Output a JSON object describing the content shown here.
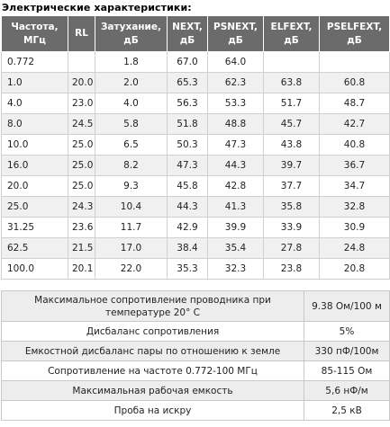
{
  "section_title": "Электрические характеристики:",
  "spec_table": {
    "headers": [
      "Частота, МГц",
      "RL",
      "Затухание, дБ",
      "NEXT, дБ",
      "PSNEXT, дБ",
      "ELFEXT, дБ",
      "PSELFEXT, дБ"
    ],
    "rows": [
      [
        "0.772",
        "",
        "1.8",
        "67.0",
        "64.0",
        "",
        ""
      ],
      [
        "1.0",
        "20.0",
        "2.0",
        "65.3",
        "62.3",
        "63.8",
        "60.8"
      ],
      [
        "4.0",
        "23.0",
        "4.0",
        "56.3",
        "53.3",
        "51.7",
        "48.7"
      ],
      [
        "8.0",
        "24.5",
        "5.8",
        "51.8",
        "48.8",
        "45.7",
        "42.7"
      ],
      [
        "10.0",
        "25.0",
        "6.5",
        "50.3",
        "47.3",
        "43.8",
        "40.8"
      ],
      [
        "16.0",
        "25.0",
        "8.2",
        "47.3",
        "44.3",
        "39.7",
        "36.7"
      ],
      [
        "20.0",
        "25.0",
        "9.3",
        "45.8",
        "42.8",
        "37.7",
        "34.7"
      ],
      [
        "25.0",
        "24.3",
        "10.4",
        "44.3",
        "41.3",
        "35.8",
        "32.8"
      ],
      [
        "31.25",
        "23.6",
        "11.7",
        "42.9",
        "39.9",
        "33.9",
        "30.9"
      ],
      [
        "62.5",
        "21.5",
        "17.0",
        "38.4",
        "35.4",
        "27.8",
        "24.8"
      ],
      [
        "100.0",
        "20.1",
        "22.0",
        "35.3",
        "32.3",
        "23.8",
        "20.8"
      ]
    ]
  },
  "extra_table": {
    "rows": [
      [
        "Максимальное сопротивление проводника при температуре 20° С",
        "9.38 Ом/100 м"
      ],
      [
        "Дисбаланс сопротивления",
        "5%"
      ],
      [
        "Емкостной дисбаланс пары по отношению к земле",
        "330 пФ/100м"
      ],
      [
        "Сопротивление на частоте 0.772-100 МГц",
        "85-115 Ом"
      ],
      [
        "Максимальная рабочая емкость",
        "5,6 нФ/м"
      ],
      [
        "Проба на искру",
        "2,5 кВ"
      ]
    ]
  }
}
